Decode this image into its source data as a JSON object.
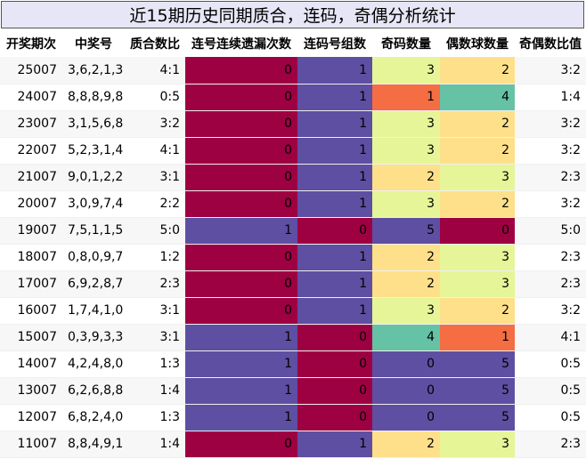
{
  "title": "近15期历史同期质合，连码，奇偶分析统计",
  "chart_data": {
    "type": "table",
    "columns": [
      "开奖期次",
      "中奖号",
      "质合数比",
      "连号连续遗漏次数",
      "连码号组数",
      "奇码数量",
      "偶数球数量",
      "奇偶数比值"
    ],
    "rows": [
      [
        "25007",
        "3,6,2,1,3",
        "4:1",
        0,
        1,
        3,
        2,
        "3:2"
      ],
      [
        "24007",
        "8,8,8,9,8",
        "0:5",
        0,
        1,
        1,
        4,
        "1:4"
      ],
      [
        "23007",
        "3,1,5,6,8",
        "3:2",
        0,
        1,
        3,
        2,
        "3:2"
      ],
      [
        "22007",
        "5,2,3,1,4",
        "4:1",
        0,
        1,
        3,
        2,
        "3:2"
      ],
      [
        "21007",
        "9,0,1,2,2",
        "3:1",
        0,
        1,
        2,
        3,
        "2:3"
      ],
      [
        "20007",
        "3,0,9,7,4",
        "2:2",
        0,
        1,
        3,
        2,
        "3:2"
      ],
      [
        "19007",
        "7,5,1,1,5",
        "5:0",
        1,
        0,
        5,
        0,
        "5:0"
      ],
      [
        "18007",
        "0,8,0,9,7",
        "1:2",
        0,
        1,
        2,
        3,
        "2:3"
      ],
      [
        "17007",
        "6,9,2,8,7",
        "2:3",
        0,
        1,
        2,
        3,
        "2:3"
      ],
      [
        "16007",
        "1,7,4,1,0",
        "3:1",
        0,
        1,
        3,
        2,
        "3:2"
      ],
      [
        "15007",
        "0,3,9,3,3",
        "3:1",
        1,
        0,
        4,
        1,
        "4:1"
      ],
      [
        "14007",
        "4,2,4,8,0",
        "1:3",
        1,
        0,
        0,
        5,
        "0:5"
      ],
      [
        "13007",
        "6,2,6,8,8",
        "1:4",
        1,
        0,
        0,
        5,
        "0:5"
      ],
      [
        "12007",
        "6,8,2,4,0",
        "1:3",
        1,
        0,
        0,
        5,
        "0:5"
      ],
      [
        "11007",
        "8,8,4,9,1",
        "1:4",
        0,
        1,
        2,
        3,
        "2:3"
      ]
    ],
    "heatmap_colors": {
      "binary": {
        "0": "#9e0142",
        "1": "#5e4fa2"
      },
      "count": {
        "0": "#5e4fa2",
        "1": "#f46d43",
        "2": "#fee08b",
        "3": "#e6f598",
        "4": "#66c2a5",
        "5": "#5e4fa2"
      },
      "count_alt": {
        "0": "#9e0142",
        "5": "#5e4fa2"
      }
    }
  }
}
